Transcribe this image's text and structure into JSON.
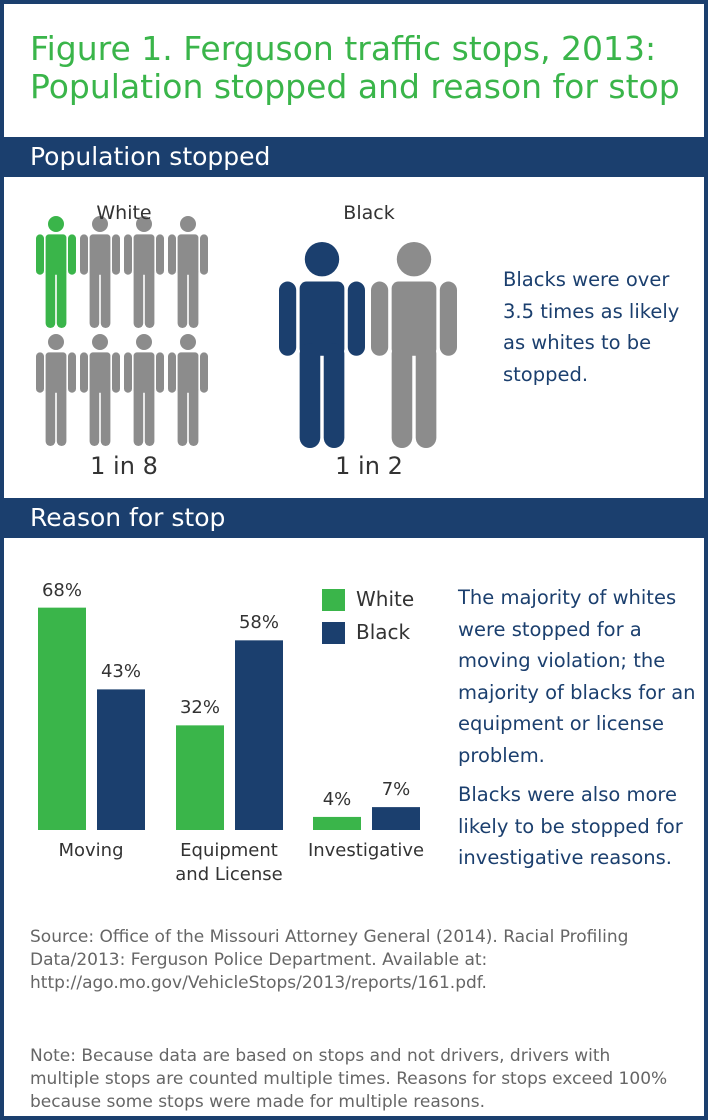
{
  "title": "Figure 1. Ferguson traffic stops, 2013: Population stopped and reason for stop",
  "population": {
    "heading": "Population stopped",
    "groups": [
      {
        "name": "White",
        "stopped": 1,
        "total": 8,
        "ratio_label": "1 in 8"
      },
      {
        "name": "Black",
        "stopped": 1,
        "total": 2,
        "ratio_label": "1 in 2"
      }
    ],
    "note": "Blacks were over 3.5 times as likely as whites to be stopped."
  },
  "reason_heading": "Reason for stop",
  "chart_data": {
    "type": "bar",
    "categories": [
      "Moving",
      "Equipment and License",
      "Investigative"
    ],
    "series": [
      {
        "name": "White",
        "color": "#3ab54a",
        "values": [
          68,
          32,
          4
        ],
        "value_labels": [
          "68%",
          "32%",
          "4%"
        ]
      },
      {
        "name": "Black",
        "color": "#1b3f6e",
        "values": [
          43,
          58,
          7
        ],
        "value_labels": [
          "43%",
          "58%",
          "7%"
        ]
      }
    ],
    "annotations": [
      "The majority of whites were stopped for a moving violation; the majority of blacks for an equipment or license problem.",
      "Blacks were also more likely to be stopped for investigative reasons."
    ]
  },
  "source": "Source: Office of the Missouri Attorney General (2014). Racial Profiling Data/2013: Ferguson Police Department. Available at: http://ago.mo.gov/VehicleStops/2013/reports/161.pdf.",
  "note": "Note: Because data are based on stops and not drivers, drivers with multiple stops are counted multiple times. Reasons for stops exceed 100% because some stops were made for multiple reasons."
}
